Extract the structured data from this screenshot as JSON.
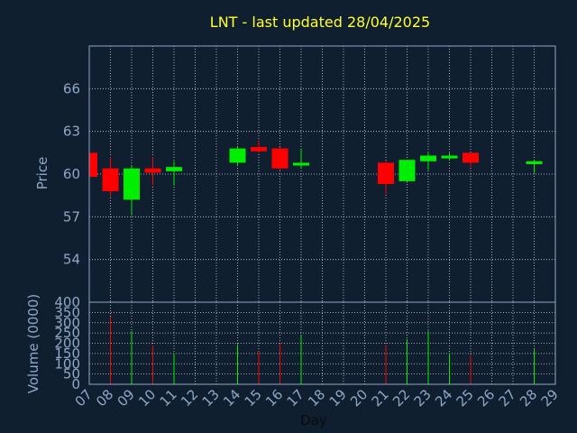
{
  "chart_data": {
    "type": "candlestick",
    "title": "LNT - last updated 28/04/2025",
    "xlabel": "Day",
    "price_ylabel": "Price",
    "volume_ylabel": "Volume (0000)",
    "x_ticks": [
      "07",
      "08",
      "09",
      "10",
      "11",
      "12",
      "13",
      "14",
      "15",
      "16",
      "17",
      "18",
      "19",
      "20",
      "21",
      "22",
      "23",
      "24",
      "25",
      "26",
      "27",
      "28",
      "29"
    ],
    "price_ticks": [
      54,
      57,
      60,
      63,
      66
    ],
    "price_ylim": [
      51,
      69
    ],
    "volume_ticks": [
      0,
      50,
      100,
      150,
      200,
      250,
      300,
      350,
      400
    ],
    "volume_ylim": [
      0,
      400
    ],
    "colors": {
      "up": "#00ee00",
      "down": "#ff0000",
      "title": "#ffff33",
      "axis": "#8fa7c6",
      "grid": "#d0d0d0",
      "background": "#0f1f30"
    },
    "candles": [
      {
        "day": "07",
        "open": 61.5,
        "high": 61.5,
        "low": 59.8,
        "close": 59.8,
        "volume": 0
      },
      {
        "day": "08",
        "open": 60.4,
        "high": 61.2,
        "low": 58.4,
        "close": 58.8,
        "volume": 330
      },
      {
        "day": "09",
        "open": 58.2,
        "high": 60.6,
        "low": 57.1,
        "close": 60.4,
        "volume": 260
      },
      {
        "day": "10",
        "open": 60.4,
        "high": 61.2,
        "low": 59.2,
        "close": 60.1,
        "volume": 190
      },
      {
        "day": "11",
        "open": 60.2,
        "high": 60.9,
        "low": 59.2,
        "close": 60.5,
        "volume": 150
      },
      {
        "day": "14",
        "open": 60.8,
        "high": 61.9,
        "low": 60.6,
        "close": 61.8,
        "volume": 195
      },
      {
        "day": "15",
        "open": 61.9,
        "high": 62.4,
        "low": 61.5,
        "close": 61.6,
        "volume": 160
      },
      {
        "day": "16",
        "open": 61.8,
        "high": 61.9,
        "low": 60.3,
        "close": 60.4,
        "volume": 200
      },
      {
        "day": "17",
        "open": 60.6,
        "high": 61.8,
        "low": 60.4,
        "close": 60.8,
        "volume": 240
      },
      {
        "day": "21",
        "open": 60.8,
        "high": 60.9,
        "low": 58.6,
        "close": 59.3,
        "volume": 190
      },
      {
        "day": "22",
        "open": 59.5,
        "high": 61.0,
        "low": 59.4,
        "close": 61.0,
        "volume": 220
      },
      {
        "day": "23",
        "open": 60.9,
        "high": 61.5,
        "low": 60.3,
        "close": 61.3,
        "volume": 260
      },
      {
        "day": "24",
        "open": 61.1,
        "high": 61.5,
        "low": 61.0,
        "close": 61.3,
        "volume": 150
      },
      {
        "day": "25",
        "open": 61.5,
        "high": 61.5,
        "low": 60.5,
        "close": 60.8,
        "volume": 140
      },
      {
        "day": "28",
        "open": 60.7,
        "high": 61.0,
        "low": 60.1,
        "close": 60.9,
        "volume": 170
      }
    ]
  }
}
